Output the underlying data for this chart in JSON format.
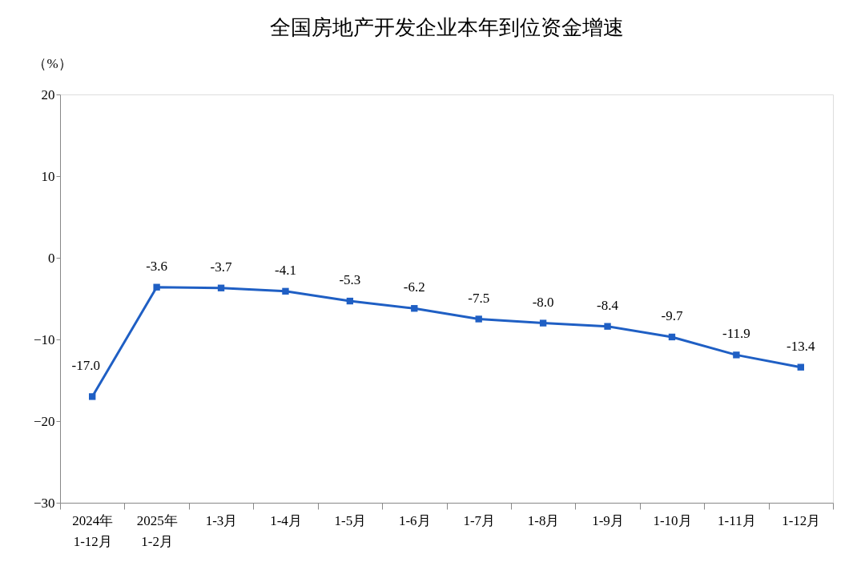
{
  "chart_data": {
    "type": "line",
    "title": "全国房地产开发企业本年到位资金增速",
    "ylabel": "（%）",
    "categories": [
      "2024年\n1-12月",
      "2025年\n1-2月",
      "1-3月",
      "1-4月",
      "1-5月",
      "1-6月",
      "1-7月",
      "1-8月",
      "1-9月",
      "1-10月",
      "1-11月",
      "1-12月"
    ],
    "series": [
      {
        "color": "#1f5fc4",
        "values": [
          -17.0,
          -3.6,
          -3.7,
          -4.1,
          -5.3,
          -6.2,
          -7.5,
          -8.0,
          -8.4,
          -9.7,
          -11.9,
          -13.4
        ],
        "value_labels": [
          "-17.0",
          "-3.6",
          "-3.7",
          "-4.1",
          "-5.3",
          "-6.2",
          "-7.5",
          "-8.0",
          "-8.4",
          "-9.7",
          "-11.9",
          "-13.4"
        ]
      }
    ],
    "ylim": [
      -30,
      20
    ],
    "yticks": [
      -30,
      -20,
      -10,
      0,
      10,
      20
    ],
    "grid": false,
    "marker": "square",
    "line_style": "solid"
  }
}
